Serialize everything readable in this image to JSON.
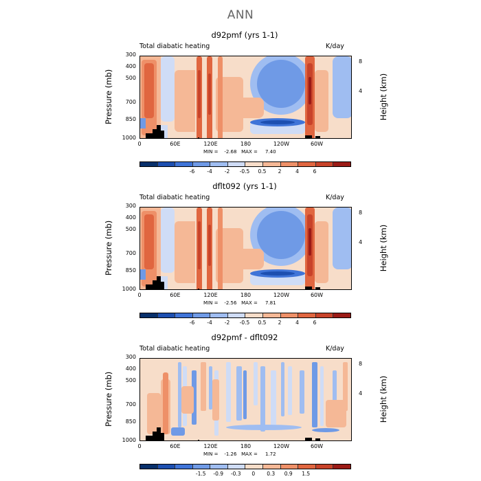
{
  "page_title": "ANN",
  "colors": [
    "#08306b",
    "#1d4fb0",
    "#3f74d8",
    "#6f9ae6",
    "#9fbdf1",
    "#cfdcf6",
    "#f7ddc9",
    "#f5b896",
    "#ee9068",
    "#e06640",
    "#c8432a",
    "#9b1b16"
  ],
  "panels": [
    {
      "title": "d92pmf (yrs 1-1)",
      "left_label": "Total diabatic heating",
      "right_label": "K/day",
      "min_text": "MIN =    -2.68   MAX =     7.40",
      "cbar_ticks": [
        "-6",
        "-4",
        "-2",
        "-0.5",
        "0.5",
        "2",
        "4",
        "6"
      ]
    },
    {
      "title": "dflt092 (yrs 1-1)",
      "left_label": "Total diabatic heating",
      "right_label": "K/day",
      "min_text": "MIN =    -2.56   MAX =     7.81",
      "cbar_ticks": [
        "-6",
        "-4",
        "-2",
        "-0.5",
        "0.5",
        "2",
        "4",
        "6"
      ]
    },
    {
      "title": "d92pmf - dflt092",
      "left_label": "Total diabatic heating",
      "right_label": "K/day",
      "min_text": "MIN =    -1.26   MAX =     1.72",
      "cbar_ticks": [
        "-1.5",
        "-0.9",
        "-0.3",
        "0",
        "0.3",
        "0.9",
        "1.5"
      ]
    }
  ],
  "axes": {
    "y_title": "Pressure  (mb)",
    "y_right_title": "Height  (km)",
    "y_ticks": [
      "300",
      "400",
      "500",
      "700",
      "850",
      "1000"
    ],
    "y_right_ticks": [
      "8",
      "4"
    ],
    "x_ticks": [
      "0",
      "60E",
      "120E",
      "180",
      "120W",
      "60W"
    ]
  },
  "chart_data": [
    {
      "type": "heatmap",
      "title": "d92pmf (yrs 1-1)",
      "xlabel": "",
      "ylabel": "Pressure  (mb)",
      "x_ticks": [
        "0",
        "60E",
        "120E",
        "180",
        "120W",
        "60W"
      ],
      "y_ticks": [
        300,
        400,
        500,
        700,
        850,
        1000
      ],
      "colorbar_levels": [
        -6,
        -4,
        -2,
        -0.5,
        0.5,
        2,
        4,
        6
      ],
      "min": -2.68,
      "max": 7.4,
      "units": "K/day"
    },
    {
      "type": "heatmap",
      "title": "dflt092 (yrs 1-1)",
      "xlabel": "",
      "ylabel": "Pressure  (mb)",
      "x_ticks": [
        "0",
        "60E",
        "120E",
        "180",
        "120W",
        "60W"
      ],
      "y_ticks": [
        300,
        400,
        500,
        700,
        850,
        1000
      ],
      "colorbar_levels": [
        -6,
        -4,
        -2,
        -0.5,
        0.5,
        2,
        4,
        6
      ],
      "min": -2.56,
      "max": 7.81,
      "units": "K/day"
    },
    {
      "type": "heatmap",
      "title": "d92pmf - dflt092",
      "xlabel": "",
      "ylabel": "Pressure  (mb)",
      "x_ticks": [
        "0",
        "60E",
        "120E",
        "180",
        "120W",
        "60W"
      ],
      "y_ticks": [
        300,
        400,
        500,
        700,
        850,
        1000
      ],
      "colorbar_levels": [
        -1.5,
        -0.9,
        -0.3,
        0,
        0.3,
        0.9,
        1.5
      ],
      "min": -1.26,
      "max": 1.72,
      "units": "K/day"
    }
  ]
}
